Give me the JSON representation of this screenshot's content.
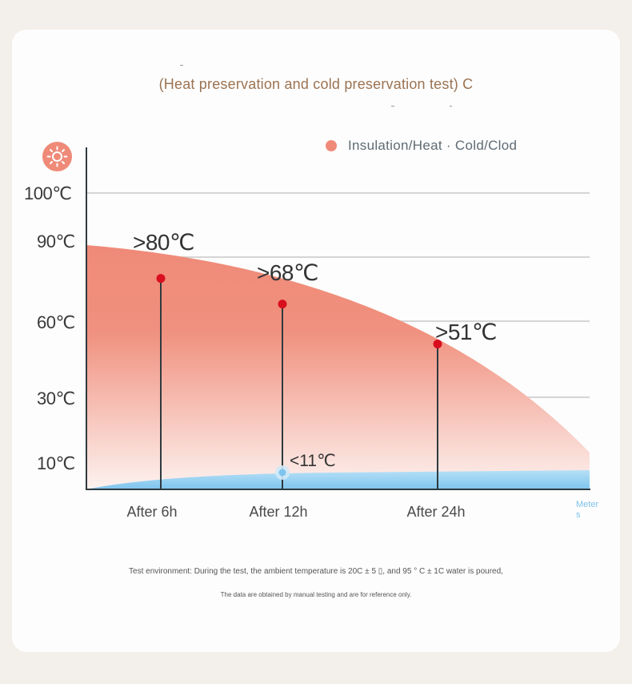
{
  "title": "(Heat preservation and cold preservation test) C",
  "legend": {
    "label": "Insulation/Heat · Cold/Clod"
  },
  "icons": {
    "heat": "sun-icon"
  },
  "colors": {
    "heat_fill": "#ef8a78",
    "cold_fill": "#8ecff2",
    "point": "#d90f1e",
    "axis": "#2f3a3f",
    "grid": "#c8c8c8"
  },
  "chart_data": {
    "type": "area",
    "title": "(Heat preservation and cold preservation test) C",
    "x_unit": "Meters",
    "categories": [
      "After 6h",
      "After 12h",
      "After 24h"
    ],
    "y_ticks": [
      "100℃",
      "90℃",
      "60℃",
      "30℃",
      "10℃"
    ],
    "series": [
      {
        "name": "Insulation/Heat",
        "values": [
          80,
          68,
          51
        ],
        "labels": [
          ">80℃",
          ">68℃",
          ">51℃"
        ]
      },
      {
        "name": "Cold/Clod",
        "values": [
          null,
          11,
          null
        ],
        "labels": [
          "",
          "<11℃",
          ""
        ]
      }
    ]
  },
  "notes": {
    "line1": "Test environment: During the test, the ambient temperature is 20C ± 5 ▯, and 95 ° C ± 1C water is poured,",
    "line2": "The data are obtained by manual testing and are for reference only."
  }
}
